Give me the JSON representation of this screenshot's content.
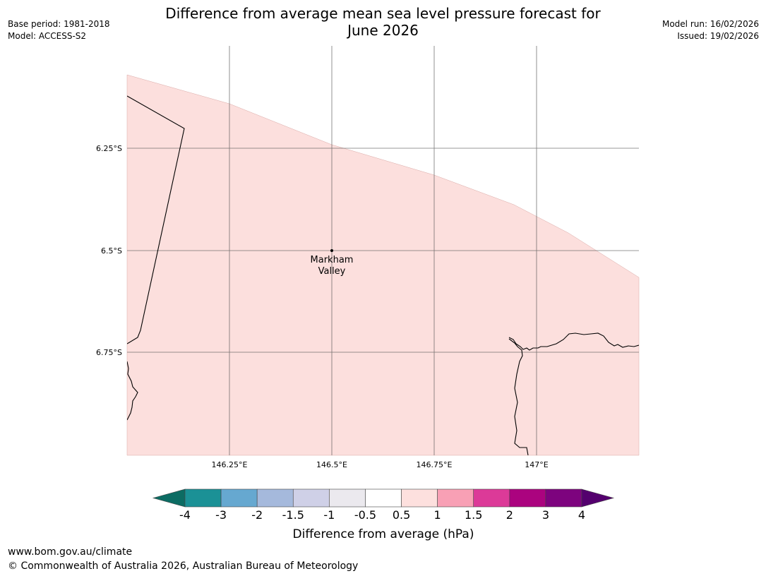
{
  "header": {
    "title_line1": "Difference from average mean sea level pressure forecast for",
    "title_line2": "June 2026",
    "base_period": "Base period: 1981-2018",
    "model": "Model: ACCESS-S2",
    "model_run": "Model run: 16/02/2026",
    "issued": "Issued: 19/02/2026"
  },
  "map": {
    "lat_ticks": [
      "6.25°S",
      "6.5°S",
      "6.75°S"
    ],
    "lon_ticks": [
      "146.25°E",
      "146.5°E",
      "146.75°E",
      "147°E"
    ],
    "location": {
      "name_line1": "Markham",
      "name_line2": "Valley"
    },
    "fill_color": "#fcdfdd"
  },
  "colorbar": {
    "label": "Difference from average (hPa)",
    "ticks": [
      "-4",
      "-3",
      "-2",
      "-1.5",
      "-1",
      "-0.5",
      "0.5",
      "1",
      "1.5",
      "2",
      "3",
      "4"
    ],
    "under_color": "#0c6c63",
    "over_color": "#54006e",
    "colors": [
      "#1b9196",
      "#66a8d0",
      "#a5b9dc",
      "#cfd0e7",
      "#ebe9ee",
      "#ffffff",
      "#fde0de",
      "#f8a0b5",
      "#dc3a98",
      "#ab037f",
      "#7d037e"
    ]
  },
  "footer": {
    "url": "www.bom.gov.au/climate",
    "copyright": "© Commonwealth of Australia 2026, Australian Bureau of Meteorology"
  }
}
